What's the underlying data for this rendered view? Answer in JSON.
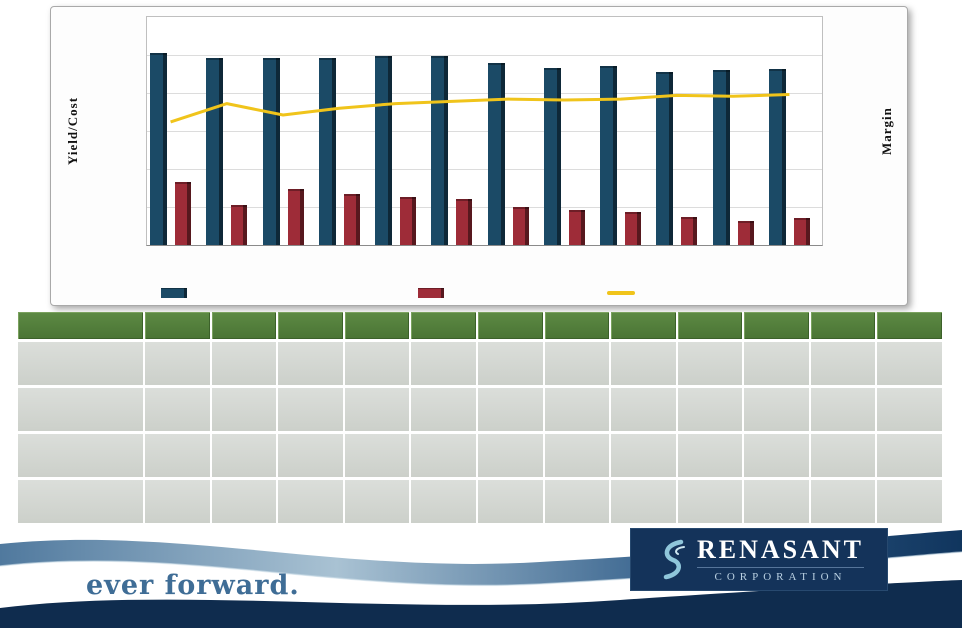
{
  "chart": {
    "left_axis_label": "Yield/Cost",
    "right_axis_label": "Margin",
    "colors": {
      "yield_bar": "#1b4a66",
      "yield_bar_dark": "#0d2a3e",
      "cost_bar": "#9e2c38",
      "cost_bar_dark": "#63161f",
      "margin_line": "#f0c41b"
    }
  },
  "chart_data": {
    "type": "bar",
    "note": "combination chart: two bar series on left axis, one line series on right axis; no tick labels, category labels or legend text visible in the image",
    "categories": [
      "",
      "",
      "",
      "",
      "",
      "",
      "",
      "",
      "",
      "",
      "",
      ""
    ],
    "series": [
      {
        "name": "Yield (dark blue bars)",
        "type": "bar",
        "axis": "left",
        "values": [
          7.6,
          7.4,
          7.4,
          7.4,
          7.45,
          7.45,
          7.2,
          7.0,
          7.05,
          6.85,
          6.9,
          6.95
        ]
      },
      {
        "name": "Cost (dark red bars)",
        "type": "bar",
        "axis": "left",
        "values": [
          2.5,
          1.6,
          2.2,
          2.0,
          1.9,
          1.8,
          1.5,
          1.4,
          1.3,
          1.1,
          0.95,
          1.05
        ]
      },
      {
        "name": "Margin (yellow line)",
        "type": "line",
        "axis": "right",
        "values": [
          2.7,
          3.1,
          2.85,
          3.0,
          3.1,
          3.15,
          3.2,
          3.18,
          3.2,
          3.28,
          3.26,
          3.3
        ]
      }
    ],
    "title": "",
    "xlabel": "",
    "ylabel": "Yield/Cost",
    "y2label": "Margin",
    "ylim": [
      0,
      9
    ],
    "y2lim": [
      0,
      5
    ],
    "grid": "horizontal gridlines on",
    "legend_position": "bottom (color swatches only, no labels visible)"
  },
  "table": {
    "header_color": "#507c38",
    "cell_color": "#d3d6d1",
    "columns": 13,
    "header": [
      "",
      "",
      "",
      "",
      "",
      "",
      "",
      "",
      "",
      "",
      "",
      "",
      ""
    ],
    "rows": [
      [
        "",
        "",
        "",
        "",
        "",
        "",
        "",
        "",
        "",
        "",
        "",
        "",
        ""
      ],
      [
        "",
        "",
        "",
        "",
        "",
        "",
        "",
        "",
        "",
        "",
        "",
        "",
        ""
      ],
      [
        "",
        "",
        "",
        "",
        "",
        "",
        "",
        "",
        "",
        "",
        "",
        "",
        ""
      ],
      [
        "",
        "",
        "",
        "",
        "",
        "",
        "",
        "",
        "",
        "",
        "",
        "",
        ""
      ]
    ]
  },
  "footer": {
    "tagline": "ever forward.",
    "logo_line1": "RENASANT",
    "logo_line2": "CORPORATION",
    "navy": "#0f2c4e",
    "wave_blue": "#4a7ca3"
  }
}
